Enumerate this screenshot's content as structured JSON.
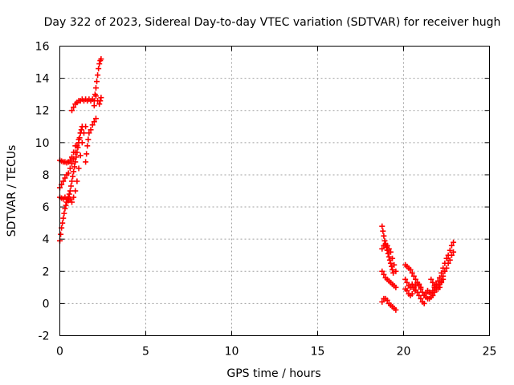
{
  "chart_data": {
    "type": "scatter",
    "title": "Day 322 of 2023, Sidereal Day-to-day VTEC variation (SDTVAR) for receiver hugh",
    "xlabel": "GPS time / hours",
    "ylabel": "SDTVAR / TECUs",
    "xlim": [
      0,
      25
    ],
    "ylim": [
      -2,
      16
    ],
    "x_ticks": [
      0,
      5,
      10,
      15,
      20,
      25
    ],
    "y_ticks": [
      -2,
      0,
      2,
      4,
      6,
      8,
      10,
      12,
      14,
      16
    ],
    "grid": true,
    "marker": "plus",
    "color": "#ff0000",
    "series": [
      {
        "points": [
          [
            0.0,
            3.9
          ],
          [
            0.05,
            4.3
          ],
          [
            0.1,
            4.7
          ],
          [
            0.15,
            5.0
          ],
          [
            0.2,
            5.3
          ],
          [
            0.25,
            5.6
          ],
          [
            0.3,
            5.9
          ],
          [
            0.35,
            6.1
          ],
          [
            0.4,
            6.3
          ],
          [
            0.45,
            6.5
          ],
          [
            0.5,
            6.6
          ],
          [
            0.55,
            6.8
          ],
          [
            0.6,
            7.0
          ],
          [
            0.65,
            7.3
          ],
          [
            0.7,
            7.6
          ],
          [
            0.75,
            7.9
          ],
          [
            0.8,
            8.2
          ],
          [
            0.85,
            8.5
          ],
          [
            0.9,
            8.8
          ],
          [
            0.95,
            9.1
          ],
          [
            1.0,
            9.4
          ],
          [
            1.05,
            9.7
          ],
          [
            1.1,
            10.0
          ],
          [
            1.15,
            10.3
          ],
          [
            1.2,
            10.6
          ],
          [
            1.25,
            10.8
          ],
          [
            1.3,
            11.0
          ],
          [
            0.0,
            7.2
          ],
          [
            0.1,
            7.4
          ],
          [
            0.2,
            7.6
          ],
          [
            0.3,
            7.8
          ],
          [
            0.4,
            8.0
          ],
          [
            0.5,
            8.1
          ],
          [
            0.6,
            8.4
          ],
          [
            0.7,
            8.7
          ],
          [
            0.8,
            9.0
          ],
          [
            0.9,
            9.4
          ],
          [
            1.0,
            9.8
          ],
          [
            1.1,
            10.2
          ],
          [
            1.2,
            10.6
          ],
          [
            1.3,
            11.0
          ],
          [
            0.0,
            8.9
          ],
          [
            0.1,
            8.85
          ],
          [
            0.2,
            8.8
          ],
          [
            0.3,
            8.8
          ],
          [
            0.4,
            8.75
          ],
          [
            0.5,
            8.8
          ],
          [
            0.6,
            8.9
          ],
          [
            0.7,
            9.1
          ],
          [
            0.8,
            9.4
          ],
          [
            0.9,
            9.8
          ],
          [
            0.0,
            6.6
          ],
          [
            0.1,
            6.55
          ],
          [
            0.2,
            6.5
          ],
          [
            0.3,
            6.6
          ],
          [
            0.4,
            6.5
          ],
          [
            0.5,
            6.4
          ],
          [
            0.6,
            6.5
          ],
          [
            0.7,
            6.3
          ],
          [
            0.8,
            6.6
          ],
          [
            0.9,
            7.0
          ],
          [
            1.0,
            7.6
          ],
          [
            1.1,
            8.4
          ],
          [
            1.2,
            9.2
          ],
          [
            1.3,
            10.0
          ],
          [
            1.4,
            10.6
          ],
          [
            1.5,
            11.0
          ],
          [
            1.5,
            8.8
          ],
          [
            1.55,
            9.3
          ],
          [
            1.6,
            9.8
          ],
          [
            1.65,
            10.2
          ],
          [
            1.7,
            10.6
          ],
          [
            1.8,
            10.8
          ],
          [
            1.9,
            11.1
          ],
          [
            2.0,
            11.3
          ],
          [
            2.1,
            11.5
          ],
          [
            0.7,
            12.0
          ],
          [
            0.8,
            12.2
          ],
          [
            0.9,
            12.4
          ],
          [
            1.0,
            12.5
          ],
          [
            1.1,
            12.6
          ],
          [
            1.2,
            12.6
          ],
          [
            1.3,
            12.7
          ],
          [
            1.4,
            12.6
          ],
          [
            1.5,
            12.7
          ],
          [
            1.6,
            12.6
          ],
          [
            1.7,
            12.7
          ],
          [
            1.8,
            12.6
          ],
          [
            1.9,
            12.7
          ],
          [
            2.0,
            12.6
          ],
          [
            2.05,
            13.0
          ],
          [
            2.1,
            13.4
          ],
          [
            2.15,
            13.8
          ],
          [
            2.2,
            14.2
          ],
          [
            2.25,
            14.6
          ],
          [
            2.3,
            14.9
          ],
          [
            2.35,
            15.1
          ],
          [
            2.4,
            15.2
          ],
          [
            2.0,
            12.3
          ],
          [
            2.1,
            12.9
          ],
          [
            2.2,
            12.6
          ],
          [
            2.3,
            12.4
          ],
          [
            2.35,
            12.6
          ],
          [
            2.4,
            12.8
          ],
          [
            18.75,
            4.8
          ],
          [
            18.8,
            4.5
          ],
          [
            18.85,
            4.2
          ],
          [
            18.9,
            3.9
          ],
          [
            18.95,
            3.7
          ],
          [
            19.0,
            3.5
          ],
          [
            19.05,
            3.3
          ],
          [
            19.1,
            3.1
          ],
          [
            19.15,
            2.9
          ],
          [
            19.2,
            2.7
          ],
          [
            19.25,
            2.5
          ],
          [
            19.3,
            2.3
          ],
          [
            19.35,
            2.1
          ],
          [
            19.4,
            1.9
          ],
          [
            18.75,
            3.4
          ],
          [
            18.85,
            3.6
          ],
          [
            18.95,
            3.7
          ],
          [
            19.05,
            3.6
          ],
          [
            19.15,
            3.4
          ],
          [
            19.25,
            3.2
          ],
          [
            19.35,
            2.8
          ],
          [
            19.45,
            2.4
          ],
          [
            19.55,
            2.0
          ],
          [
            18.75,
            2.0
          ],
          [
            18.85,
            1.8
          ],
          [
            18.95,
            1.6
          ],
          [
            19.05,
            1.5
          ],
          [
            19.15,
            1.4
          ],
          [
            19.25,
            1.3
          ],
          [
            19.35,
            1.2
          ],
          [
            19.45,
            1.1
          ],
          [
            19.55,
            1.0
          ],
          [
            18.75,
            0.1
          ],
          [
            18.85,
            0.3
          ],
          [
            18.95,
            0.3
          ],
          [
            19.05,
            0.2
          ],
          [
            19.15,
            0.0
          ],
          [
            19.25,
            -0.1
          ],
          [
            19.35,
            -0.2
          ],
          [
            19.45,
            -0.3
          ],
          [
            19.55,
            -0.4
          ],
          [
            20.1,
            2.4
          ],
          [
            20.2,
            2.3
          ],
          [
            20.3,
            2.2
          ],
          [
            20.4,
            2.1
          ],
          [
            20.5,
            1.9
          ],
          [
            20.6,
            1.7
          ],
          [
            20.7,
            1.5
          ],
          [
            20.8,
            1.3
          ],
          [
            20.9,
            1.1
          ],
          [
            21.0,
            0.9
          ],
          [
            21.1,
            0.7
          ],
          [
            21.2,
            0.5
          ],
          [
            21.3,
            0.4
          ],
          [
            21.4,
            0.3
          ],
          [
            20.1,
            1.5
          ],
          [
            20.2,
            1.3
          ],
          [
            20.3,
            1.1
          ],
          [
            20.4,
            1.0
          ],
          [
            20.5,
            1.2
          ],
          [
            20.6,
            1.0
          ],
          [
            20.7,
            0.8
          ],
          [
            20.8,
            0.7
          ],
          [
            20.9,
            0.5
          ],
          [
            21.0,
            0.3
          ],
          [
            21.1,
            0.1
          ],
          [
            21.2,
            0.0
          ],
          [
            20.1,
            0.9
          ],
          [
            20.2,
            0.8
          ],
          [
            20.3,
            0.6
          ],
          [
            20.4,
            0.5
          ],
          [
            20.5,
            0.6
          ],
          [
            20.6,
            0.9
          ],
          [
            20.7,
            1.1
          ],
          [
            20.8,
            1.3
          ],
          [
            20.9,
            1.2
          ],
          [
            21.0,
            1.0
          ],
          [
            21.3,
            0.6
          ],
          [
            21.4,
            0.8
          ],
          [
            21.5,
            0.7
          ],
          [
            21.6,
            0.6
          ],
          [
            21.7,
            0.8
          ],
          [
            21.8,
            1.0
          ],
          [
            21.9,
            1.2
          ],
          [
            22.0,
            1.4
          ],
          [
            22.1,
            1.6
          ],
          [
            22.2,
            1.9
          ],
          [
            22.3,
            2.2
          ],
          [
            22.4,
            2.5
          ],
          [
            22.5,
            2.8
          ],
          [
            22.6,
            3.0
          ],
          [
            22.7,
            3.3
          ],
          [
            22.8,
            3.6
          ],
          [
            22.9,
            3.8
          ],
          [
            21.5,
            0.3
          ],
          [
            21.6,
            0.4
          ],
          [
            21.7,
            0.5
          ],
          [
            21.8,
            0.7
          ],
          [
            21.9,
            0.9
          ],
          [
            22.0,
            1.1
          ],
          [
            22.1,
            1.2
          ],
          [
            22.2,
            1.4
          ],
          [
            22.3,
            1.7
          ],
          [
            22.4,
            2.0
          ],
          [
            22.5,
            2.2
          ],
          [
            22.6,
            2.5
          ],
          [
            22.7,
            2.7
          ],
          [
            22.8,
            3.0
          ],
          [
            22.9,
            3.2
          ],
          [
            21.6,
            1.5
          ],
          [
            21.7,
            1.3
          ],
          [
            21.8,
            1.1
          ],
          [
            21.9,
            1.0
          ],
          [
            22.0,
            0.9
          ],
          [
            22.1,
            1.0
          ],
          [
            22.2,
            1.3
          ],
          [
            22.3,
            1.5
          ]
        ]
      }
    ]
  }
}
